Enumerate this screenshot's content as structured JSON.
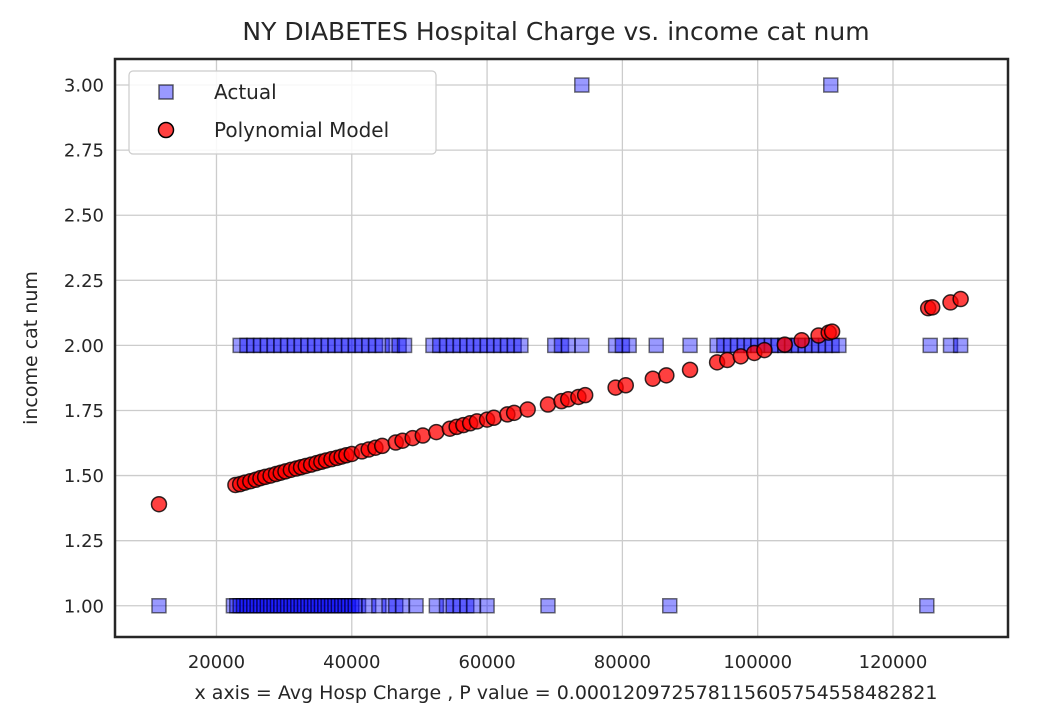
{
  "chart_data": {
    "type": "scatter",
    "title": "NY DIABETES Hospital Charge vs. income cat num",
    "xlabel": "x axis = Avg Hosp Charge , P value = 0.00012097257811560575455848282​1",
    "ylabel": "income cat num",
    "xlim": [
      5000,
      137000
    ],
    "ylim": [
      0.88,
      3.1
    ],
    "xticks": [
      20000,
      40000,
      60000,
      80000,
      100000,
      120000
    ],
    "yticks": [
      1.0,
      1.25,
      1.5,
      1.75,
      2.0,
      2.25,
      2.5,
      2.75,
      3.0
    ],
    "ytick_labels": [
      "1.00",
      "1.25",
      "1.50",
      "1.75",
      "2.00",
      "2.25",
      "2.50",
      "2.75",
      "3.00"
    ],
    "grid": true,
    "legend_position": "top-left",
    "series": [
      {
        "name": "Actual",
        "marker": "square",
        "color": "#0000ff",
        "x": [
          11500,
          22500,
          23000,
          23500,
          24000,
          24500,
          25000,
          25500,
          26000,
          26500,
          27000,
          27500,
          28000,
          28500,
          29000,
          29500,
          30000,
          30500,
          31000,
          31500,
          32000,
          32500,
          33000,
          33500,
          34000,
          34500,
          35000,
          35500,
          36000,
          36500,
          37000,
          37500,
          38000,
          38500,
          39000,
          39500,
          40000,
          40500,
          41000,
          42500,
          44000,
          45500,
          46500,
          47500,
          49500,
          52500,
          54000,
          55000,
          56000,
          57000,
          58000,
          60000,
          69000,
          87000,
          125000,
          23500,
          24500,
          25500,
          26500,
          27500,
          28500,
          29500,
          30500,
          31500,
          32500,
          33500,
          34500,
          35500,
          36500,
          37500,
          38500,
          39500,
          40500,
          41500,
          42500,
          43500,
          44500,
          46000,
          47000,
          47800,
          52000,
          53000,
          54000,
          55000,
          56000,
          57000,
          58000,
          59000,
          60000,
          61000,
          62000,
          63000,
          64000,
          65000,
          70000,
          71000,
          72000,
          74000,
          79000,
          80000,
          81000,
          85000,
          90000,
          94000,
          95000,
          96000,
          97000,
          98000,
          99000,
          100000,
          101000,
          102000,
          103000,
          104000,
          105000,
          106000,
          107000,
          108000,
          109000,
          110000,
          111000,
          112000,
          125500,
          128500,
          130000,
          74000,
          110800
        ],
        "y": [
          1,
          1,
          1,
          1,
          1,
          1,
          1,
          1,
          1,
          1,
          1,
          1,
          1,
          1,
          1,
          1,
          1,
          1,
          1,
          1,
          1,
          1,
          1,
          1,
          1,
          1,
          1,
          1,
          1,
          1,
          1,
          1,
          1,
          1,
          1,
          1,
          1,
          1,
          1,
          1,
          1,
          1,
          1,
          1,
          1,
          1,
          1,
          1,
          1,
          1,
          1,
          1,
          1,
          1,
          1,
          2,
          2,
          2,
          2,
          2,
          2,
          2,
          2,
          2,
          2,
          2,
          2,
          2,
          2,
          2,
          2,
          2,
          2,
          2,
          2,
          2,
          2,
          2,
          2,
          2,
          2,
          2,
          2,
          2,
          2,
          2,
          2,
          2,
          2,
          2,
          2,
          2,
          2,
          2,
          2,
          2,
          2,
          2,
          2,
          2,
          2,
          2,
          2,
          2,
          2,
          2,
          2,
          2,
          2,
          2,
          2,
          2,
          2,
          2,
          2,
          2,
          2,
          2,
          2,
          2,
          2,
          2,
          2,
          2,
          2,
          3,
          3
        ]
      },
      {
        "name": "Polynomial Model",
        "marker": "circle",
        "color": "#ff0000",
        "x": [
          11500,
          22800,
          23500,
          24200,
          25000,
          25800,
          26500,
          27200,
          28000,
          28800,
          29500,
          30200,
          31000,
          31800,
          32500,
          33200,
          34000,
          34800,
          35500,
          36200,
          37000,
          37800,
          38500,
          39200,
          40000,
          41500,
          42500,
          43500,
          44500,
          46500,
          47500,
          49000,
          50500,
          52500,
          54500,
          55500,
          56500,
          57500,
          58500,
          60000,
          61000,
          63000,
          64000,
          66000,
          69000,
          71000,
          72000,
          73500,
          74500,
          79000,
          80500,
          84500,
          86500,
          90000,
          94000,
          95500,
          97500,
          99500,
          101000,
          104000,
          106500,
          109000,
          110500,
          111000,
          125200,
          125800,
          128500,
          130000
        ],
        "y": [
          1.39,
          1.464,
          1.467,
          1.473,
          1.478,
          1.484,
          1.49,
          1.495,
          1.5,
          1.506,
          1.511,
          1.516,
          1.522,
          1.527,
          1.532,
          1.537,
          1.542,
          1.548,
          1.553,
          1.558,
          1.563,
          1.568,
          1.573,
          1.578,
          1.583,
          1.593,
          1.6,
          1.607,
          1.614,
          1.627,
          1.634,
          1.644,
          1.654,
          1.667,
          1.68,
          1.687,
          1.694,
          1.701,
          1.708,
          1.715,
          1.722,
          1.735,
          1.741,
          1.754,
          1.773,
          1.786,
          1.793,
          1.802,
          1.809,
          1.838,
          1.847,
          1.872,
          1.885,
          1.906,
          1.935,
          1.944,
          1.958,
          1.971,
          1.982,
          2.003,
          2.02,
          2.038,
          2.049,
          2.053,
          2.143,
          2.146,
          2.165,
          2.178
        ]
      }
    ]
  }
}
